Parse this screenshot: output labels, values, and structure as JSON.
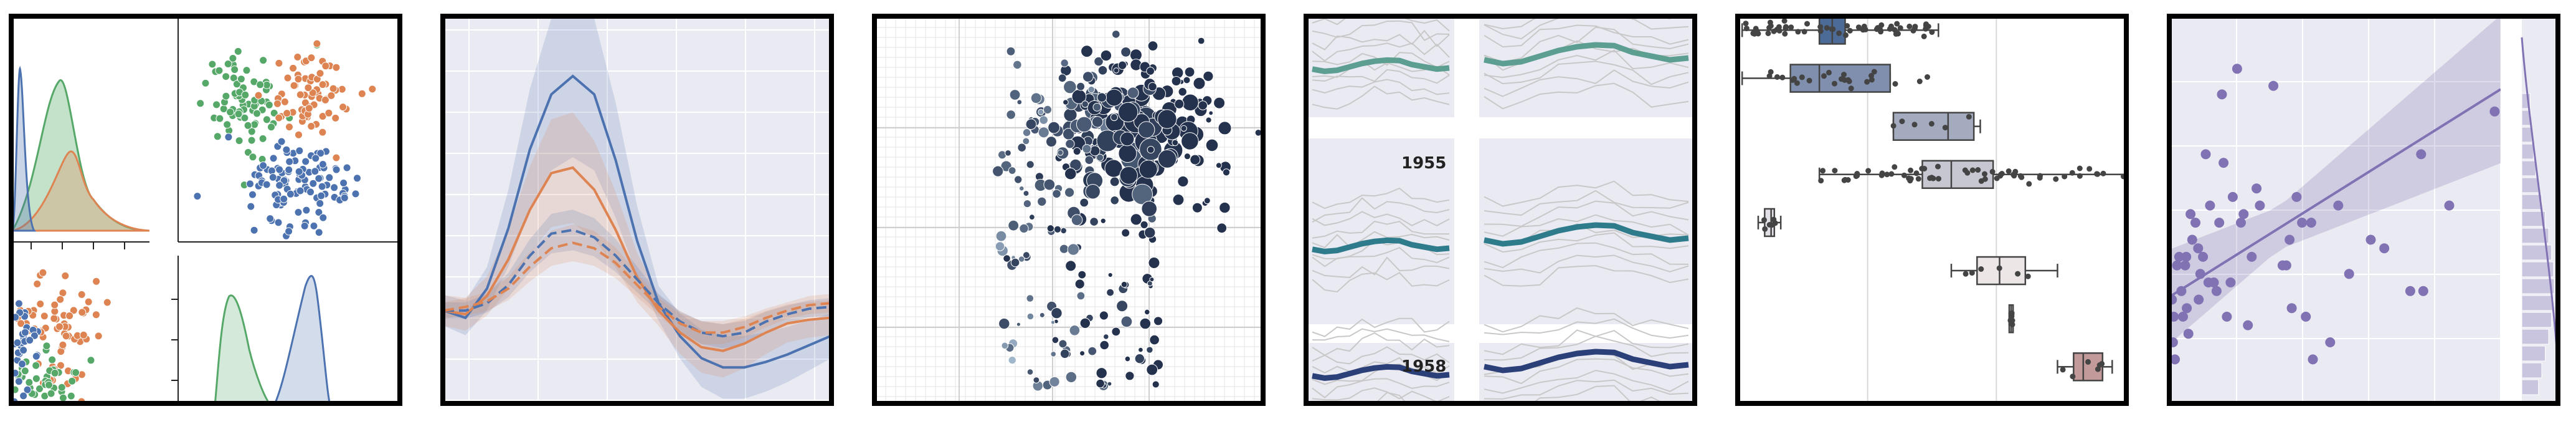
{
  "chart_data": [
    {
      "type": "pairplot",
      "series": [
        {
          "name": "",
          "color": "#55a868"
        },
        {
          "name": "",
          "color": "#dd8452"
        },
        {
          "name": "",
          "color": "#4c72b0"
        }
      ],
      "grid": false
    },
    {
      "type": "line",
      "x": [
        0,
        1,
        2,
        3,
        4,
        5,
        6,
        7,
        8,
        9,
        10,
        11,
        12,
        13,
        14,
        15,
        16,
        17,
        18
      ],
      "series": [
        {
          "style": "solid",
          "color": "#4c72b0",
          "values": [
            0.0,
            -0.04,
            0.12,
            0.45,
            0.88,
            1.18,
            1.28,
            1.18,
            0.82,
            0.38,
            0.04,
            -0.14,
            -0.26,
            -0.31,
            -0.31,
            -0.28,
            -0.24,
            -0.19,
            -0.14
          ]
        },
        {
          "style": "solid",
          "color": "#dd8452",
          "values": [
            0.0,
            -0.02,
            0.08,
            0.28,
            0.55,
            0.75,
            0.78,
            0.66,
            0.44,
            0.18,
            0.0,
            -0.12,
            -0.2,
            -0.22,
            -0.18,
            -0.12,
            -0.07,
            -0.05,
            -0.04
          ]
        },
        {
          "style": "dashed",
          "color": "#4c72b0",
          "values": [
            0.0,
            0.0,
            0.04,
            0.14,
            0.3,
            0.42,
            0.44,
            0.4,
            0.3,
            0.17,
            0.04,
            -0.06,
            -0.12,
            -0.14,
            -0.12,
            -0.06,
            -0.02,
            0.01,
            0.02
          ]
        },
        {
          "style": "dashed",
          "color": "#dd8452",
          "values": [
            0.0,
            0.02,
            0.05,
            0.12,
            0.24,
            0.34,
            0.37,
            0.34,
            0.26,
            0.14,
            0.02,
            -0.07,
            -0.12,
            -0.12,
            -0.09,
            -0.04,
            0.0,
            0.03,
            0.04
          ]
        }
      ],
      "ylim": [
        -0.5,
        1.6
      ],
      "grid": true
    },
    {
      "type": "scatter",
      "point_count": 380,
      "color_range": [
        "#a9c0d4",
        "#24324e"
      ],
      "grid": "major and minor"
    },
    {
      "type": "line",
      "facet_labels": [
        "1955",
        "1958"
      ],
      "months": 12,
      "highlight_colors": [
        "#5c9f90",
        "#2e7b8c",
        "#2b3f78"
      ],
      "background_color": "#c8c8c8"
    },
    {
      "type": "box",
      "rows": [
        {
          "color": "#4d6b97",
          "q1": 12.5,
          "median": 14.5,
          "q3": 16.5,
          "whisker_low": 0.5,
          "whisker_high": 31.0
        },
        {
          "color": "#7f8fad",
          "q1": 8.0,
          "median": 12.5,
          "q3": 23.5,
          "whisker_low": 0.5,
          "whisker_high": 23.5
        },
        {
          "color": "#a4abbf",
          "q1": 24.0,
          "median": 32.5,
          "q3": 36.5,
          "whisker_low": 24.0,
          "whisker_high": 37.5
        },
        {
          "color": "#c6c7d0",
          "q1": 28.5,
          "median": 33.0,
          "q3": 39.5,
          "whisker_low": 12.5,
          "whisker_high": 60.0
        },
        {
          "color": "#e2e0e6",
          "q1": 4.0,
          "median": 5.0,
          "q3": 5.5,
          "whisker_low": 3.0,
          "whisker_high": 6.5
        },
        {
          "color": "#ece6e7",
          "q1": 37.0,
          "median": 40.5,
          "q3": 44.5,
          "whisker_low": 33.0,
          "whisker_high": 49.5
        },
        {
          "color": "#e8dcdc",
          "q1": 42.0,
          "median": 42.3,
          "q3": 42.6,
          "whisker_low": 42.0,
          "whisker_high": 42.6
        },
        {
          "color": "#c29a99",
          "q1": 52.0,
          "median": 53.5,
          "q3": 56.5,
          "whisker_low": 49.5,
          "whisker_high": 58.0
        }
      ],
      "xlim": [
        0,
        60
      ],
      "grid": true
    },
    {
      "type": "scatter",
      "color": "#8172b3",
      "points": [
        [
          0.25,
          2.2
        ],
        [
          0.6,
          2.0
        ],
        [
          0.45,
          1.7
        ],
        [
          0.8,
          1.5
        ],
        [
          1.2,
          2.6
        ],
        [
          1.6,
          2.7
        ],
        [
          2.0,
          2.3
        ],
        [
          2.3,
          2.0
        ],
        [
          2.7,
          2.6
        ],
        [
          3.0,
          2.1
        ],
        [
          3.3,
          1.8
        ],
        [
          3.7,
          3.2
        ],
        [
          4.0,
          2.9
        ],
        [
          4.6,
          3.1
        ],
        [
          5.1,
          2.8
        ],
        [
          5.2,
          2.2
        ],
        [
          5.5,
          2.5
        ],
        [
          6.0,
          2.7
        ],
        [
          6.5,
          3.9
        ],
        [
          7.0,
          2.4
        ],
        [
          7.3,
          3.3
        ],
        [
          8.0,
          2.4
        ],
        [
          8.5,
          2.3
        ],
        [
          9.5,
          4.6
        ],
        [
          9.8,
          3.8
        ],
        [
          10.4,
          2.0
        ],
        [
          11.1,
          2.4
        ],
        [
          11.5,
          3.4
        ],
        [
          12.3,
          4.9
        ],
        [
          13.0,
          3.1
        ],
        [
          13.5,
          3.2
        ],
        [
          14.3,
          1.9
        ],
        [
          15.0,
          2.7
        ],
        [
          15.9,
          3.5
        ],
        [
          19.0,
          4.7
        ],
        [
          20.7,
          2.6
        ],
        [
          21.4,
          2.6
        ],
        [
          22.4,
          2.1
        ],
        [
          24.3,
          3.1
        ],
        [
          25.0,
          2.0
        ],
        [
          26.3,
          1.5
        ],
        [
          26.0,
          3.1
        ],
        [
          29.5,
          1.7
        ],
        [
          33.0,
          2.5
        ],
        [
          37.0,
          2.9
        ],
        [
          39.5,
          2.8
        ],
        [
          44.3,
          2.3
        ],
        [
          46.7,
          2.3
        ],
        [
          51.5,
          3.3
        ],
        [
          59.9,
          4.4
        ],
        [
          46.3,
          3.9
        ],
        [
          31.0,
          3.3
        ],
        [
          23.3,
          3.4
        ],
        [
          22.0,
          2.9
        ],
        [
          16.5,
          3.3
        ],
        [
          9.0,
          3.1
        ],
        [
          2.9,
          2.7
        ]
      ],
      "regression": {
        "x": [
          0,
          61
        ],
        "y": [
          2.24,
          4.66
        ]
      },
      "marginal": "right",
      "grid": true
    }
  ]
}
